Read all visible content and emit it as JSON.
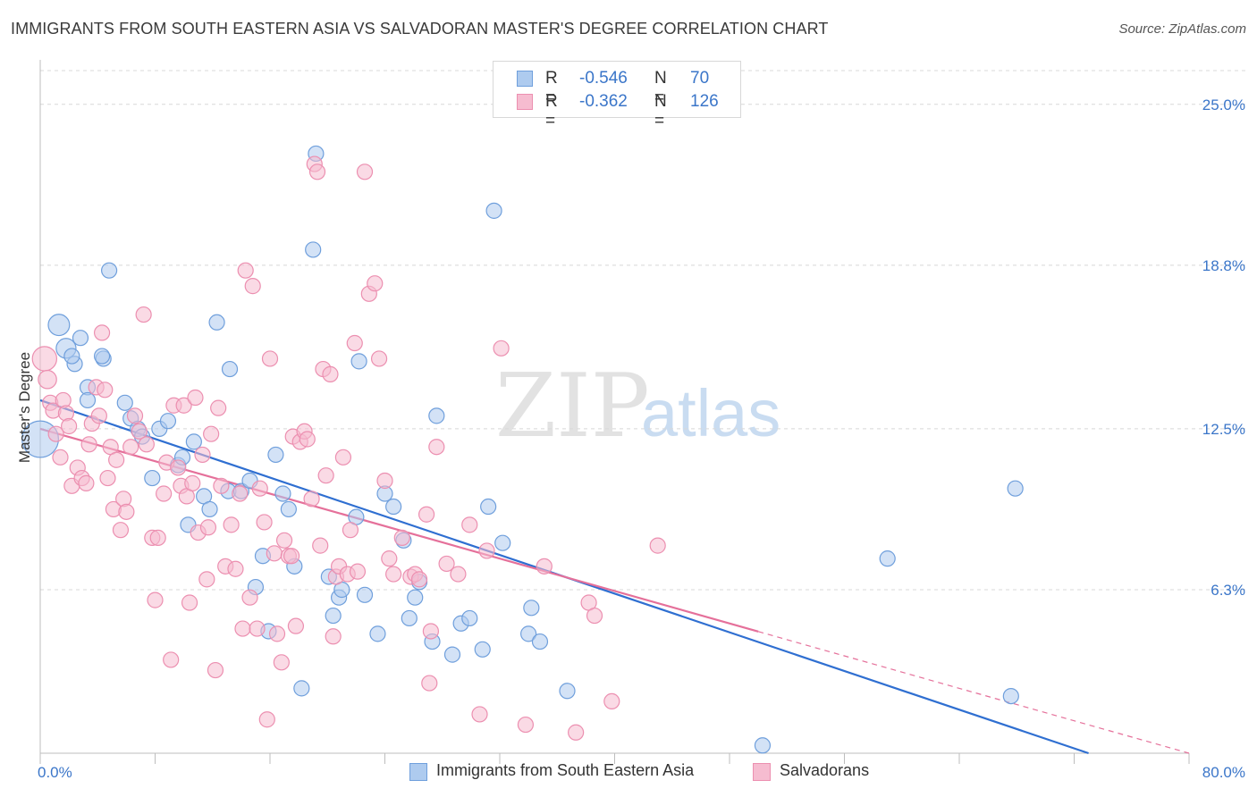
{
  "title": "IMMIGRANTS FROM SOUTH EASTERN ASIA VS SALVADORAN MASTER'S DEGREE CORRELATION CHART",
  "source": "Source: ZipAtlas.com",
  "watermark": {
    "part1": "ZIP",
    "part2": "atlas"
  },
  "legend": {
    "series1": {
      "r_label": "R =",
      "r_value": "-0.546",
      "n_label": "N =",
      "n_value": "70"
    },
    "series2": {
      "r_label": "R =",
      "r_value": "-0.362",
      "n_label": "N =",
      "n_value": "126"
    }
  },
  "chart_data": {
    "type": "scatter",
    "title": "IMMIGRANTS FROM SOUTH EASTERN ASIA VS SALVADORAN MASTER'S DEGREE CORRELATION CHART",
    "xlabel": "",
    "ylabel": "Master's Degree",
    "xlim": [
      0,
      80
    ],
    "ylim": [
      0,
      26.3
    ],
    "x_tick_labels": [
      "0.0%",
      "80.0%"
    ],
    "y_ticks": [
      6.3,
      12.5,
      18.8,
      25.0
    ],
    "y_tick_labels": [
      "6.3%",
      "12.5%",
      "18.8%",
      "25.0%"
    ],
    "grid": true,
    "legend_position": "top-center",
    "colors": {
      "series1_fill": "#aecbef",
      "series1_stroke": "#6f9fdc",
      "series1_line": "#2f6fd1",
      "series2_fill": "#f6bcd0",
      "series2_stroke": "#ec8fb0",
      "series2_line": "#e5709a",
      "grid": "#d8d8d8",
      "axis": "#bdbdbd",
      "tick_label": "#3b76c9"
    },
    "series": [
      {
        "name": "Immigrants from South Eastern Asia",
        "r": -0.546,
        "n": 70,
        "trend": {
          "x0": 0,
          "y0": 13.6,
          "x1": 73,
          "y1": 0,
          "dashed_from": null
        },
        "points": [
          [
            0.0,
            12.1,
            2.4
          ],
          [
            1.3,
            16.5,
            1.4
          ],
          [
            1.8,
            15.6,
            1.3
          ],
          [
            2.8,
            16.0,
            1.0
          ],
          [
            2.4,
            15.0,
            1.0
          ],
          [
            2.2,
            15.3,
            1.0
          ],
          [
            3.3,
            14.1,
            1.0
          ],
          [
            3.3,
            13.6,
            1.0
          ],
          [
            4.4,
            15.2,
            1.0
          ],
          [
            4.8,
            18.6,
            1.0
          ],
          [
            4.3,
            15.3,
            1.0
          ],
          [
            5.9,
            13.5,
            1.0
          ],
          [
            6.3,
            12.9,
            1.0
          ],
          [
            6.8,
            12.5,
            1.0
          ],
          [
            7.1,
            12.2,
            1.0
          ],
          [
            7.8,
            10.6,
            1.0
          ],
          [
            8.3,
            12.5,
            1.0
          ],
          [
            8.9,
            12.8,
            1.0
          ],
          [
            9.6,
            11.1,
            1.0
          ],
          [
            9.9,
            11.4,
            1.0
          ],
          [
            10.3,
            8.8,
            1.0
          ],
          [
            10.7,
            12.0,
            1.0
          ],
          [
            11.4,
            9.9,
            1.0
          ],
          [
            11.8,
            9.4,
            1.0
          ],
          [
            12.3,
            16.6,
            1.0
          ],
          [
            13.1,
            10.1,
            1.0
          ],
          [
            13.2,
            14.8,
            1.0
          ],
          [
            14.0,
            10.1,
            1.0
          ],
          [
            14.6,
            10.5,
            1.0
          ],
          [
            15.0,
            6.4,
            1.0
          ],
          [
            15.5,
            7.6,
            1.0
          ],
          [
            15.9,
            4.7,
            1.0
          ],
          [
            16.4,
            11.5,
            1.0
          ],
          [
            16.9,
            10.0,
            1.0
          ],
          [
            17.3,
            9.4,
            1.0
          ],
          [
            17.7,
            7.2,
            1.0
          ],
          [
            18.2,
            2.5,
            1.0
          ],
          [
            19.0,
            19.4,
            1.0
          ],
          [
            19.2,
            23.1,
            1.0
          ],
          [
            20.1,
            6.8,
            1.0
          ],
          [
            20.4,
            5.3,
            1.0
          ],
          [
            20.8,
            6.0,
            1.0
          ],
          [
            21.0,
            6.3,
            1.0
          ],
          [
            22.0,
            9.1,
            1.0
          ],
          [
            22.2,
            15.1,
            1.0
          ],
          [
            22.6,
            6.1,
            1.0
          ],
          [
            23.5,
            4.6,
            1.0
          ],
          [
            24.0,
            10.0,
            1.0
          ],
          [
            24.6,
            9.5,
            1.0
          ],
          [
            25.3,
            8.2,
            1.0
          ],
          [
            25.7,
            5.2,
            1.0
          ],
          [
            26.1,
            6.0,
            1.0
          ],
          [
            26.4,
            6.6,
            1.0
          ],
          [
            27.3,
            4.3,
            1.0
          ],
          [
            27.6,
            13.0,
            1.0
          ],
          [
            28.7,
            3.8,
            1.0
          ],
          [
            29.3,
            5.0,
            1.0
          ],
          [
            29.9,
            5.2,
            1.0
          ],
          [
            30.8,
            4.0,
            1.0
          ],
          [
            31.2,
            9.5,
            1.0
          ],
          [
            31.6,
            20.9,
            1.0
          ],
          [
            32.2,
            8.1,
            1.0
          ],
          [
            34.0,
            4.6,
            1.0
          ],
          [
            34.2,
            5.6,
            1.0
          ],
          [
            34.8,
            4.3,
            1.0
          ],
          [
            36.7,
            2.4,
            1.0
          ],
          [
            50.3,
            0.3,
            1.0
          ],
          [
            59.0,
            7.5,
            1.0
          ],
          [
            67.6,
            2.2,
            1.0
          ],
          [
            67.9,
            10.2,
            1.0
          ]
        ]
      },
      {
        "name": "Salvadorans",
        "r": -0.362,
        "n": 126,
        "trend": {
          "x0": 0,
          "y0": 12.5,
          "x1": 80,
          "y1": 0,
          "dashed_from": 50.0
        },
        "points": [
          [
            0.3,
            15.2,
            1.6
          ],
          [
            0.5,
            14.4,
            1.2
          ],
          [
            0.7,
            13.5,
            1.0
          ],
          [
            0.9,
            13.2,
            1.0
          ],
          [
            1.1,
            12.3,
            1.0
          ],
          [
            1.4,
            11.4,
            1.0
          ],
          [
            1.6,
            13.6,
            1.0
          ],
          [
            1.8,
            13.1,
            1.0
          ],
          [
            2.0,
            12.6,
            1.0
          ],
          [
            2.2,
            10.3,
            1.0
          ],
          [
            2.6,
            11.0,
            1.0
          ],
          [
            2.9,
            10.6,
            1.0
          ],
          [
            3.2,
            10.4,
            1.0
          ],
          [
            3.4,
            11.9,
            1.0
          ],
          [
            3.6,
            12.7,
            1.0
          ],
          [
            3.9,
            14.1,
            1.0
          ],
          [
            4.1,
            13.0,
            1.0
          ],
          [
            4.3,
            16.2,
            1.0
          ],
          [
            4.5,
            14.0,
            1.0
          ],
          [
            4.7,
            10.6,
            1.0
          ],
          [
            4.9,
            11.8,
            1.0
          ],
          [
            5.1,
            9.4,
            1.0
          ],
          [
            5.3,
            11.3,
            1.0
          ],
          [
            5.6,
            8.6,
            1.0
          ],
          [
            5.8,
            9.8,
            1.0
          ],
          [
            6.0,
            9.3,
            1.0
          ],
          [
            6.3,
            11.8,
            1.0
          ],
          [
            6.6,
            13.0,
            1.0
          ],
          [
            6.9,
            12.4,
            1.0
          ],
          [
            7.2,
            16.9,
            1.0
          ],
          [
            7.4,
            11.9,
            1.0
          ],
          [
            7.8,
            8.3,
            1.0
          ],
          [
            8.0,
            5.9,
            1.0
          ],
          [
            8.2,
            8.3,
            1.0
          ],
          [
            8.6,
            10.0,
            1.0
          ],
          [
            8.8,
            11.2,
            1.0
          ],
          [
            9.1,
            3.6,
            1.0
          ],
          [
            9.3,
            13.4,
            1.0
          ],
          [
            9.6,
            11.0,
            1.0
          ],
          [
            9.8,
            10.3,
            1.0
          ],
          [
            10.0,
            13.4,
            1.0
          ],
          [
            10.2,
            9.9,
            1.0
          ],
          [
            10.4,
            5.8,
            1.0
          ],
          [
            10.6,
            10.4,
            1.0
          ],
          [
            10.8,
            13.7,
            1.0
          ],
          [
            11.0,
            8.5,
            1.0
          ],
          [
            11.3,
            11.5,
            1.0
          ],
          [
            11.6,
            6.7,
            1.0
          ],
          [
            11.9,
            12.3,
            1.0
          ],
          [
            12.2,
            3.2,
            1.0
          ],
          [
            12.4,
            13.3,
            1.0
          ],
          [
            12.6,
            10.3,
            1.0
          ],
          [
            12.9,
            7.2,
            1.0
          ],
          [
            13.3,
            8.8,
            1.0
          ],
          [
            13.6,
            7.1,
            1.0
          ],
          [
            13.9,
            10.0,
            1.0
          ],
          [
            14.1,
            4.8,
            1.0
          ],
          [
            14.3,
            18.6,
            1.0
          ],
          [
            14.6,
            6.0,
            1.0
          ],
          [
            14.8,
            18.0,
            1.0
          ],
          [
            15.1,
            4.8,
            1.0
          ],
          [
            15.3,
            10.2,
            1.0
          ],
          [
            15.6,
            8.9,
            1.0
          ],
          [
            15.8,
            1.3,
            1.0
          ],
          [
            16.0,
            15.2,
            1.0
          ],
          [
            16.3,
            7.7,
            1.0
          ],
          [
            16.5,
            4.6,
            1.0
          ],
          [
            16.8,
            3.5,
            1.0
          ],
          [
            17.0,
            8.2,
            1.0
          ],
          [
            17.3,
            7.6,
            1.0
          ],
          [
            17.6,
            12.2,
            1.0
          ],
          [
            17.8,
            4.9,
            1.0
          ],
          [
            18.1,
            12.0,
            1.0
          ],
          [
            18.4,
            12.4,
            1.0
          ],
          [
            18.6,
            12.1,
            1.0
          ],
          [
            18.9,
            9.8,
            1.0
          ],
          [
            19.1,
            22.7,
            1.0
          ],
          [
            19.3,
            22.4,
            1.0
          ],
          [
            19.5,
            8.0,
            1.0
          ],
          [
            19.7,
            14.8,
            1.0
          ],
          [
            19.9,
            10.7,
            1.0
          ],
          [
            20.2,
            14.6,
            1.0
          ],
          [
            20.4,
            4.5,
            1.0
          ],
          [
            20.6,
            6.8,
            1.0
          ],
          [
            20.8,
            7.2,
            1.0
          ],
          [
            21.1,
            11.4,
            1.0
          ],
          [
            21.4,
            6.9,
            1.0
          ],
          [
            21.6,
            8.6,
            1.0
          ],
          [
            21.9,
            15.8,
            1.0
          ],
          [
            22.1,
            7.0,
            1.0
          ],
          [
            22.6,
            22.4,
            1.0
          ],
          [
            22.9,
            17.7,
            1.0
          ],
          [
            23.3,
            18.1,
            1.0
          ],
          [
            23.6,
            15.2,
            1.0
          ],
          [
            24.0,
            10.5,
            1.0
          ],
          [
            24.3,
            7.5,
            1.0
          ],
          [
            24.6,
            6.9,
            1.0
          ],
          [
            25.2,
            8.3,
            1.0
          ],
          [
            25.8,
            6.8,
            1.0
          ],
          [
            26.1,
            6.9,
            1.0
          ],
          [
            26.4,
            6.7,
            1.0
          ],
          [
            26.9,
            9.2,
            1.0
          ],
          [
            27.2,
            4.7,
            1.0
          ],
          [
            27.6,
            11.8,
            1.0
          ],
          [
            28.3,
            7.3,
            1.0
          ],
          [
            29.1,
            6.9,
            1.0
          ],
          [
            29.9,
            8.8,
            1.0
          ],
          [
            30.6,
            1.5,
            1.0
          ],
          [
            31.1,
            7.8,
            1.0
          ],
          [
            32.1,
            15.6,
            1.0
          ],
          [
            33.8,
            1.1,
            1.0
          ],
          [
            35.1,
            7.2,
            1.0
          ],
          [
            37.3,
            0.8,
            1.0
          ],
          [
            38.2,
            5.8,
            1.0
          ],
          [
            38.6,
            5.3,
            1.0
          ],
          [
            39.8,
            2.0,
            1.0
          ],
          [
            43.0,
            8.0,
            1.0
          ],
          [
            11.7,
            8.7,
            1.0
          ],
          [
            17.5,
            7.6,
            1.0
          ],
          [
            27.1,
            2.7,
            1.0
          ]
        ]
      }
    ]
  },
  "bottom_legend": {
    "series1_label": "Immigrants from South Eastern Asia",
    "series2_label": "Salvadorans"
  }
}
